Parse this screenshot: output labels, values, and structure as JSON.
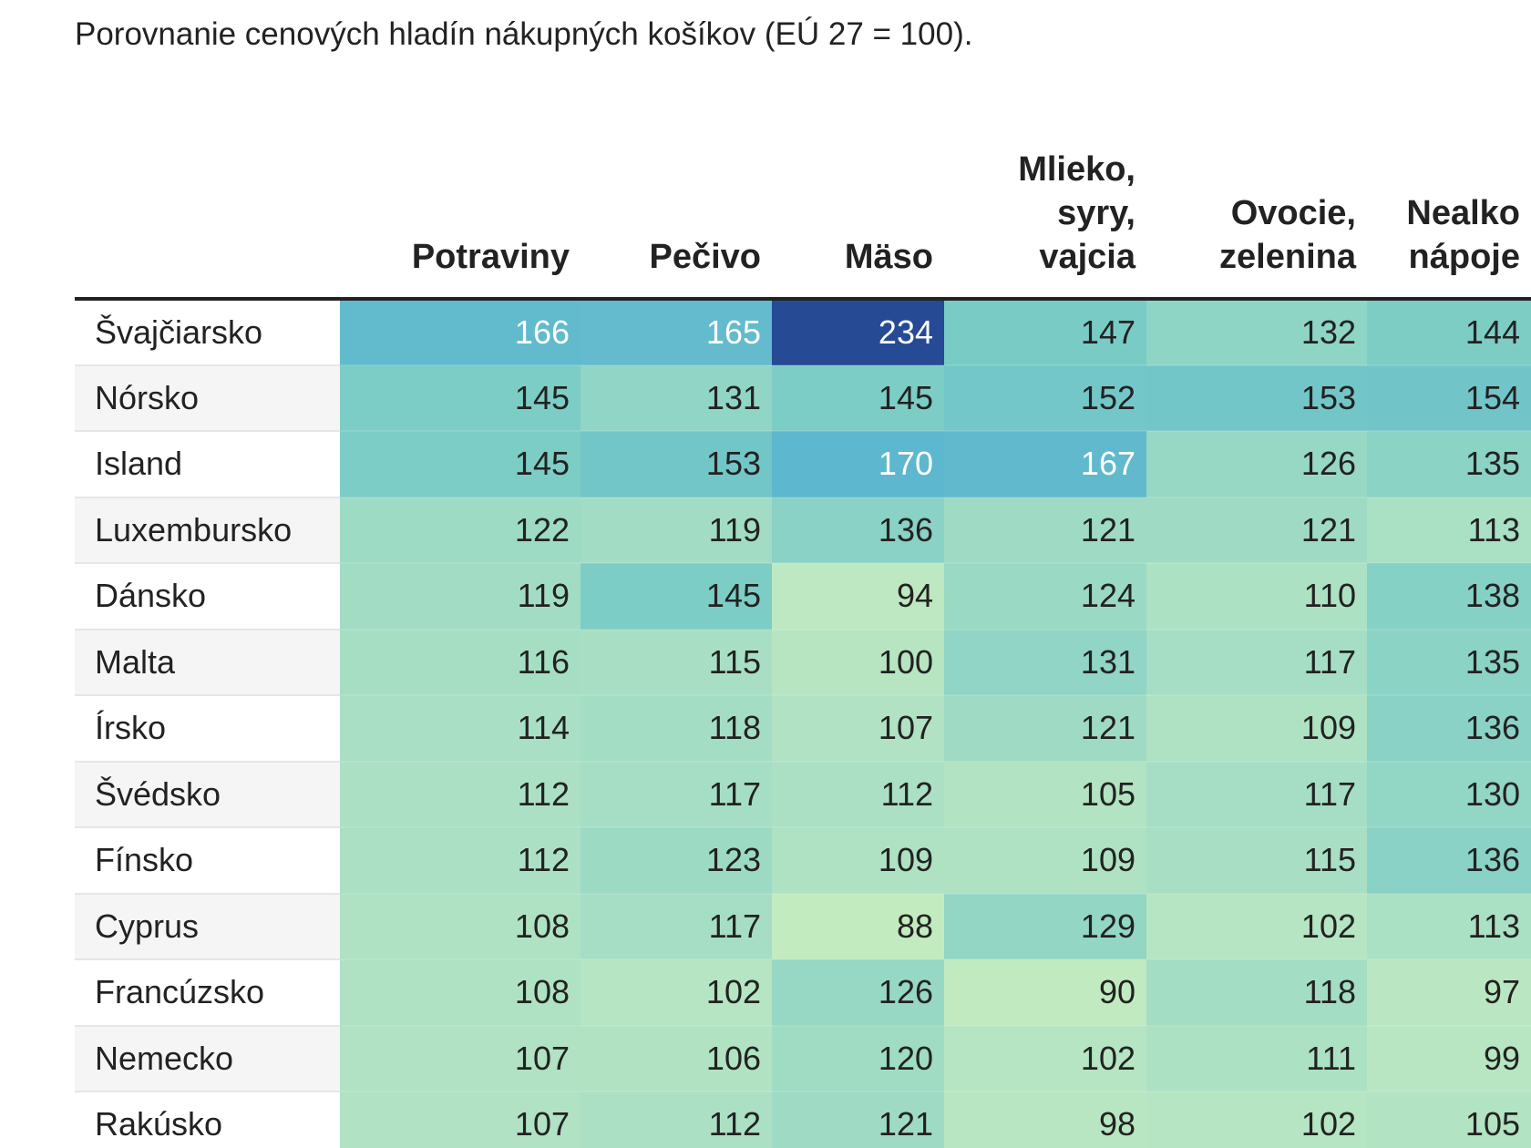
{
  "subtitle": "Porovnanie cenových hladín nákupných košíkov (EÚ 27 = 100).",
  "chart_data": {
    "type": "heatmap",
    "title": "",
    "subtitle": "Porovnanie cenových hladín nákupných košíkov (EÚ 27 = 100).",
    "columns": [
      "Potraviny",
      "Pečivo",
      "Mäso",
      "Mlieko, syry, vajcia",
      "Ovocie, zelenina",
      "Nealko nápoje"
    ],
    "column_lines": [
      [
        "Potraviny"
      ],
      [
        "Pečivo"
      ],
      [
        "Mäso"
      ],
      [
        "Mlieko,",
        "syry,",
        "vajcia"
      ],
      [
        "Ovocie,",
        "zelenina"
      ],
      [
        "Nealko",
        "nápoje"
      ]
    ],
    "rows": [
      {
        "country": "Švajčiarsko",
        "values": [
          166,
          165,
          234,
          147,
          132,
          144
        ]
      },
      {
        "country": "Nórsko",
        "values": [
          145,
          131,
          145,
          152,
          153,
          154
        ]
      },
      {
        "country": "Island",
        "values": [
          145,
          153,
          170,
          167,
          126,
          135
        ]
      },
      {
        "country": "Luxembursko",
        "values": [
          122,
          119,
          136,
          121,
          121,
          113
        ]
      },
      {
        "country": "Dánsko",
        "values": [
          119,
          145,
          94,
          124,
          110,
          138
        ]
      },
      {
        "country": "Malta",
        "values": [
          116,
          115,
          100,
          131,
          117,
          135
        ]
      },
      {
        "country": "Írsko",
        "values": [
          114,
          118,
          107,
          121,
          109,
          136
        ]
      },
      {
        "country": "Švédsko",
        "values": [
          112,
          117,
          112,
          105,
          117,
          130
        ]
      },
      {
        "country": "Fínsko",
        "values": [
          112,
          123,
          109,
          109,
          115,
          136
        ]
      },
      {
        "country": "Cyprus",
        "values": [
          108,
          117,
          88,
          129,
          102,
          113
        ]
      },
      {
        "country": "Francúzsko",
        "values": [
          108,
          102,
          126,
          90,
          118,
          97
        ]
      },
      {
        "country": "Nemecko",
        "values": [
          107,
          106,
          120,
          102,
          111,
          99
        ]
      },
      {
        "country": "Rakúsko",
        "values": [
          107,
          112,
          121,
          98,
          102,
          105
        ]
      }
    ],
    "color_scale": {
      "stops": [
        "#c6ecc0",
        "#a8dfc4",
        "#7ccdc5",
        "#58b3d0",
        "#3a8fc6",
        "#264a94"
      ],
      "domain": [
        85,
        234
      ]
    },
    "text_colors": {
      "dark": "#222222",
      "light": "#ffffff"
    }
  }
}
